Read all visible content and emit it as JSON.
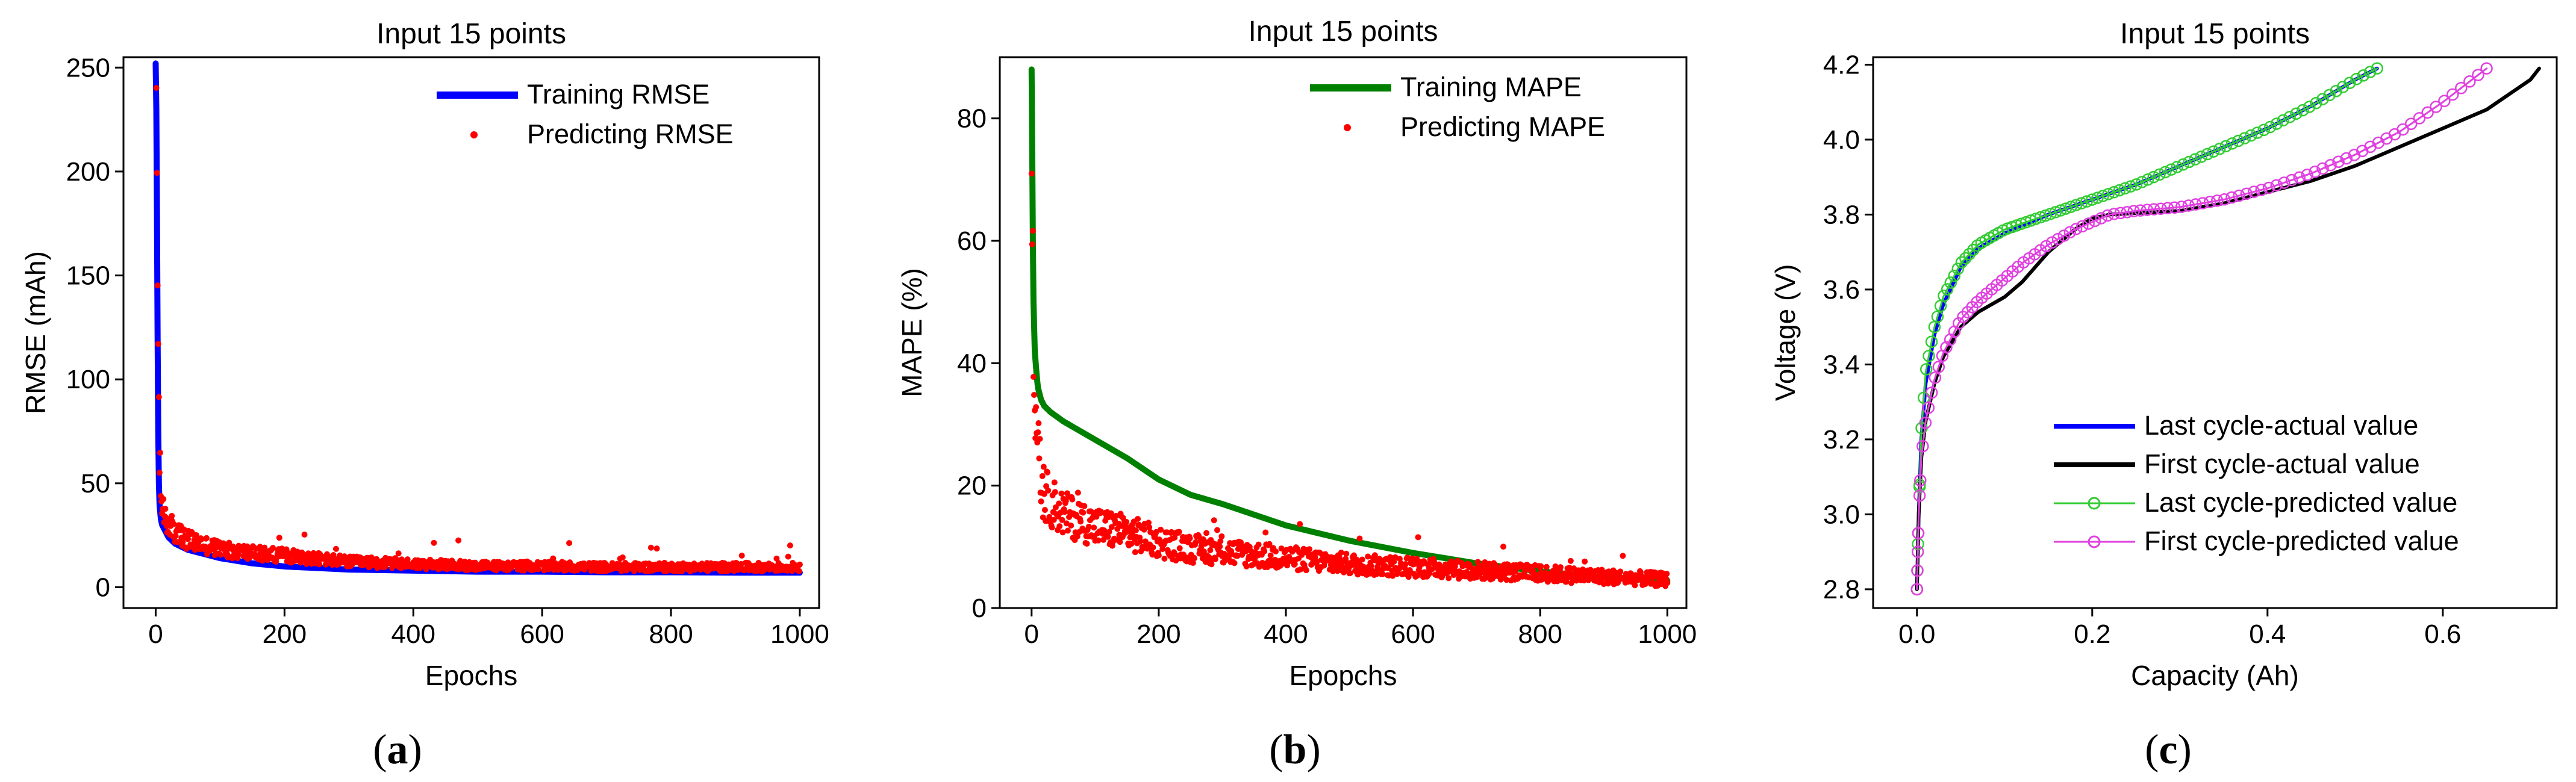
{
  "chart_data": [
    {
      "id": "a",
      "type": "line",
      "title": "Input 15 points",
      "xlabel": "Epochs",
      "ylabel": "RMSE (mAh)",
      "xlim": [
        -50,
        1030
      ],
      "ylim": [
        -10,
        255
      ],
      "xticks": [
        0,
        200,
        400,
        600,
        800,
        1000
      ],
      "yticks": [
        0,
        50,
        100,
        150,
        200,
        250
      ],
      "legend_position": "top-right",
      "series": [
        {
          "name": "Training RMSE",
          "style": "line",
          "color": "#0000ff",
          "x": [
            0,
            1,
            2,
            3,
            4,
            5,
            6,
            8,
            10,
            15,
            20,
            30,
            50,
            100,
            150,
            200,
            300,
            400,
            500,
            600,
            700,
            800,
            900,
            1000
          ],
          "y": [
            252,
            230,
            180,
            120,
            75,
            50,
            40,
            33,
            30,
            27,
            24,
            21,
            18,
            14,
            11.5,
            10,
            8.5,
            8,
            7.5,
            7.5,
            7.2,
            7.2,
            7,
            7
          ]
        },
        {
          "name": "Predicting RMSE",
          "style": "scatter",
          "color": "#ff0000",
          "x": [
            0,
            1,
            2,
            3,
            4,
            5,
            6,
            8,
            10,
            15,
            20,
            30,
            50,
            100,
            150,
            200,
            300,
            400,
            500,
            600,
            700,
            800,
            900,
            1000
          ],
          "y": [
            252,
            235,
            190,
            150,
            110,
            85,
            60,
            45,
            38,
            35,
            30,
            26,
            22,
            18,
            16,
            15,
            12,
            11,
            10,
            10,
            9.5,
            9.5,
            9.5,
            9.5
          ]
        }
      ]
    },
    {
      "id": "b",
      "type": "line",
      "title": "Input 15 points",
      "xlabel": "Epopchs",
      "ylabel": "MAPE (%)",
      "xlim": [
        -50,
        1030
      ],
      "ylim": [
        0,
        90
      ],
      "xticks": [
        0,
        200,
        400,
        600,
        800,
        1000
      ],
      "yticks": [
        0,
        20,
        40,
        60,
        80
      ],
      "legend_position": "top-right",
      "series": [
        {
          "name": "Training MAPE",
          "style": "line",
          "color": "#008000",
          "x": [
            0,
            1,
            2,
            3,
            5,
            8,
            10,
            15,
            20,
            30,
            50,
            100,
            150,
            200,
            250,
            300,
            400,
            500,
            600,
            700,
            800,
            900,
            1000
          ],
          "y": [
            88,
            75,
            60,
            50,
            42,
            38,
            36,
            34,
            33,
            32,
            30.5,
            27.5,
            24.5,
            21,
            18.5,
            17,
            13.5,
            11,
            9,
            7.3,
            6,
            5,
            4.5
          ]
        },
        {
          "name": "Predicting MAPE",
          "style": "scatter",
          "color": "#ff0000",
          "x": [
            0,
            1,
            2,
            3,
            5,
            8,
            10,
            15,
            20,
            30,
            50,
            100,
            150,
            200,
            250,
            300,
            400,
            500,
            600,
            700,
            800,
            900,
            1000
          ],
          "y": [
            88,
            72,
            55,
            45,
            36,
            30,
            25,
            20,
            18,
            17,
            15,
            13,
            12,
            10.5,
            9.5,
            9,
            8,
            7,
            6.5,
            6,
            5.5,
            5,
            4.5
          ]
        }
      ]
    },
    {
      "id": "c",
      "type": "line",
      "title": "Input 15 points",
      "xlabel": "Capacity (Ah)",
      "ylabel": "Voltage (V)",
      "xlim": [
        -0.05,
        0.73
      ],
      "ylim": [
        2.75,
        4.22
      ],
      "xticks": [
        0.0,
        0.2,
        0.4,
        0.6
      ],
      "yticks": [
        2.8,
        3.0,
        3.2,
        3.4,
        3.6,
        3.8,
        4.0,
        4.2
      ],
      "legend_position": "bottom-right",
      "series": [
        {
          "name": "Last cycle-actual value",
          "style": "line",
          "color": "#0000ff",
          "x": [
            0,
            0.002,
            0.005,
            0.01,
            0.02,
            0.03,
            0.05,
            0.07,
            0.1,
            0.15,
            0.2,
            0.25,
            0.3,
            0.35,
            0.4,
            0.45,
            0.5,
            0.525
          ],
          "y": [
            2.8,
            3.0,
            3.2,
            3.35,
            3.48,
            3.56,
            3.66,
            3.71,
            3.75,
            3.8,
            3.84,
            3.88,
            3.93,
            3.98,
            4.03,
            4.09,
            4.16,
            4.19
          ]
        },
        {
          "name": "First cycle-actual value",
          "style": "line",
          "color": "#000000",
          "x": [
            0,
            0.002,
            0.005,
            0.01,
            0.02,
            0.03,
            0.05,
            0.07,
            0.1,
            0.12,
            0.15,
            0.18,
            0.2,
            0.22,
            0.3,
            0.35,
            0.4,
            0.45,
            0.5,
            0.55,
            0.6,
            0.65,
            0.7,
            0.71
          ],
          "y": [
            2.8,
            3.0,
            3.15,
            3.25,
            3.35,
            3.42,
            3.5,
            3.54,
            3.58,
            3.62,
            3.7,
            3.76,
            3.79,
            3.8,
            3.81,
            3.83,
            3.86,
            3.89,
            3.93,
            3.98,
            4.03,
            4.08,
            4.16,
            4.19
          ]
        },
        {
          "name": "Last cycle-predicted value",
          "style": "line-marker",
          "color": "#33cc33",
          "x": [
            0,
            0.002,
            0.005,
            0.01,
            0.02,
            0.03,
            0.05,
            0.07,
            0.1,
            0.15,
            0.2,
            0.25,
            0.3,
            0.35,
            0.4,
            0.45,
            0.5,
            0.525
          ],
          "y": [
            2.8,
            3.0,
            3.22,
            3.38,
            3.5,
            3.58,
            3.67,
            3.72,
            3.76,
            3.8,
            3.84,
            3.88,
            3.93,
            3.98,
            4.03,
            4.09,
            4.16,
            4.19
          ]
        },
        {
          "name": "First cycle-predicted value",
          "style": "line-marker",
          "color": "#e040e0",
          "x": [
            0,
            0.002,
            0.005,
            0.01,
            0.02,
            0.03,
            0.05,
            0.07,
            0.1,
            0.12,
            0.15,
            0.18,
            0.2,
            0.22,
            0.25,
            0.3,
            0.35,
            0.4,
            0.45,
            0.5,
            0.55,
            0.6,
            0.65
          ],
          "y": [
            2.8,
            3.0,
            3.15,
            3.25,
            3.36,
            3.43,
            3.52,
            3.57,
            3.63,
            3.67,
            3.72,
            3.76,
            3.78,
            3.8,
            3.81,
            3.82,
            3.84,
            3.87,
            3.91,
            3.96,
            4.02,
            4.1,
            4.19
          ]
        }
      ]
    }
  ],
  "captions": [
    {
      "open": "(",
      "letter": "a",
      "close": ")"
    },
    {
      "open": "(",
      "letter": "b",
      "close": ")"
    },
    {
      "open": "(",
      "letter": "c",
      "close": ")"
    }
  ]
}
